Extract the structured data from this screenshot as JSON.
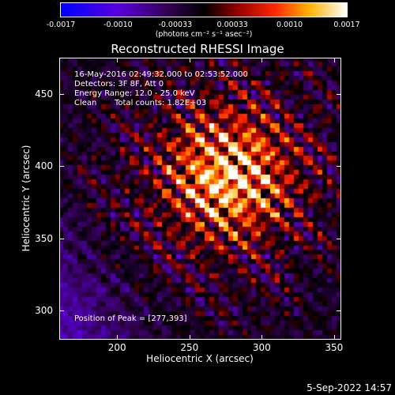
{
  "colorbar": {
    "ticks": [
      "-0.0017",
      "-0.0010",
      "-0.00033",
      "0.00033",
      "0.0010",
      "0.0017"
    ],
    "units": "(photons cm⁻² s⁻¹ asec⁻²)"
  },
  "plot": {
    "title": "Reconstructed RHESSI Image",
    "xlabel": "Heliocentric X (arcsec)",
    "ylabel": "Heliocentric Y (arcsec)",
    "xticks": [
      "200",
      "250",
      "300",
      "350"
    ],
    "yticks": [
      "450",
      "400",
      "350",
      "300"
    ]
  },
  "info": {
    "time_range": "16-May-2016 02:49:32.000 to 02:53:52.000",
    "detectors": "Detectors: 3F 8F, Att 0",
    "energy_range": "Energy Range: 12.0 - 25.0 keV",
    "algorithm": "Clean",
    "total_counts": "Total counts: 1.82E+03",
    "peak": "Position of Peak = [277,393]"
  },
  "footer": {
    "date": "5-Sep-2022 14:57"
  },
  "chart_data": {
    "type": "heatmap",
    "title": "Reconstructed RHESSI Image",
    "xlabel": "Heliocentric X (arcsec)",
    "ylabel": "Heliocentric Y (arcsec)",
    "xlim": [
      160,
      355
    ],
    "ylim": [
      280,
      475
    ],
    "colorbar_range": [
      -0.0017,
      0.0017
    ],
    "peak_position": [
      277,
      393
    ]
  }
}
